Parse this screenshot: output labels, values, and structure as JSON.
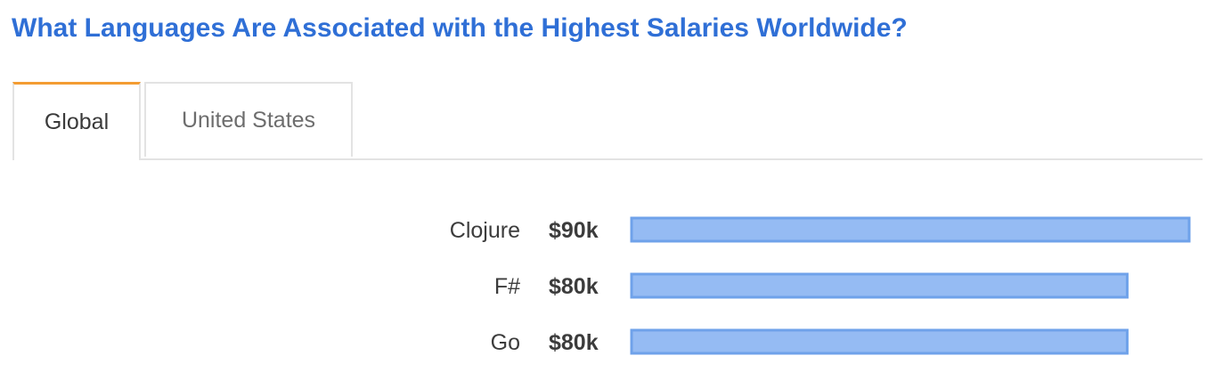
{
  "page": {
    "title": "What Languages Are Associated with the Highest Salaries Worldwide?"
  },
  "tabs": [
    {
      "label": "Global",
      "active": true
    },
    {
      "label": "United States",
      "active": false
    }
  ],
  "colors": {
    "title": "#2f6fd6",
    "active_tab_accent": "#f39c32",
    "bar_fill": "#95bbf3",
    "bar_border": "#6fa2ea"
  },
  "chart_data": {
    "type": "bar",
    "orientation": "horizontal",
    "categories": [
      "Clojure",
      "F#",
      "Go"
    ],
    "values": [
      90,
      80,
      80
    ],
    "value_labels": [
      "$90k",
      "$80k",
      "$80k"
    ],
    "xlim": [
      0,
      90
    ],
    "grid": false
  }
}
